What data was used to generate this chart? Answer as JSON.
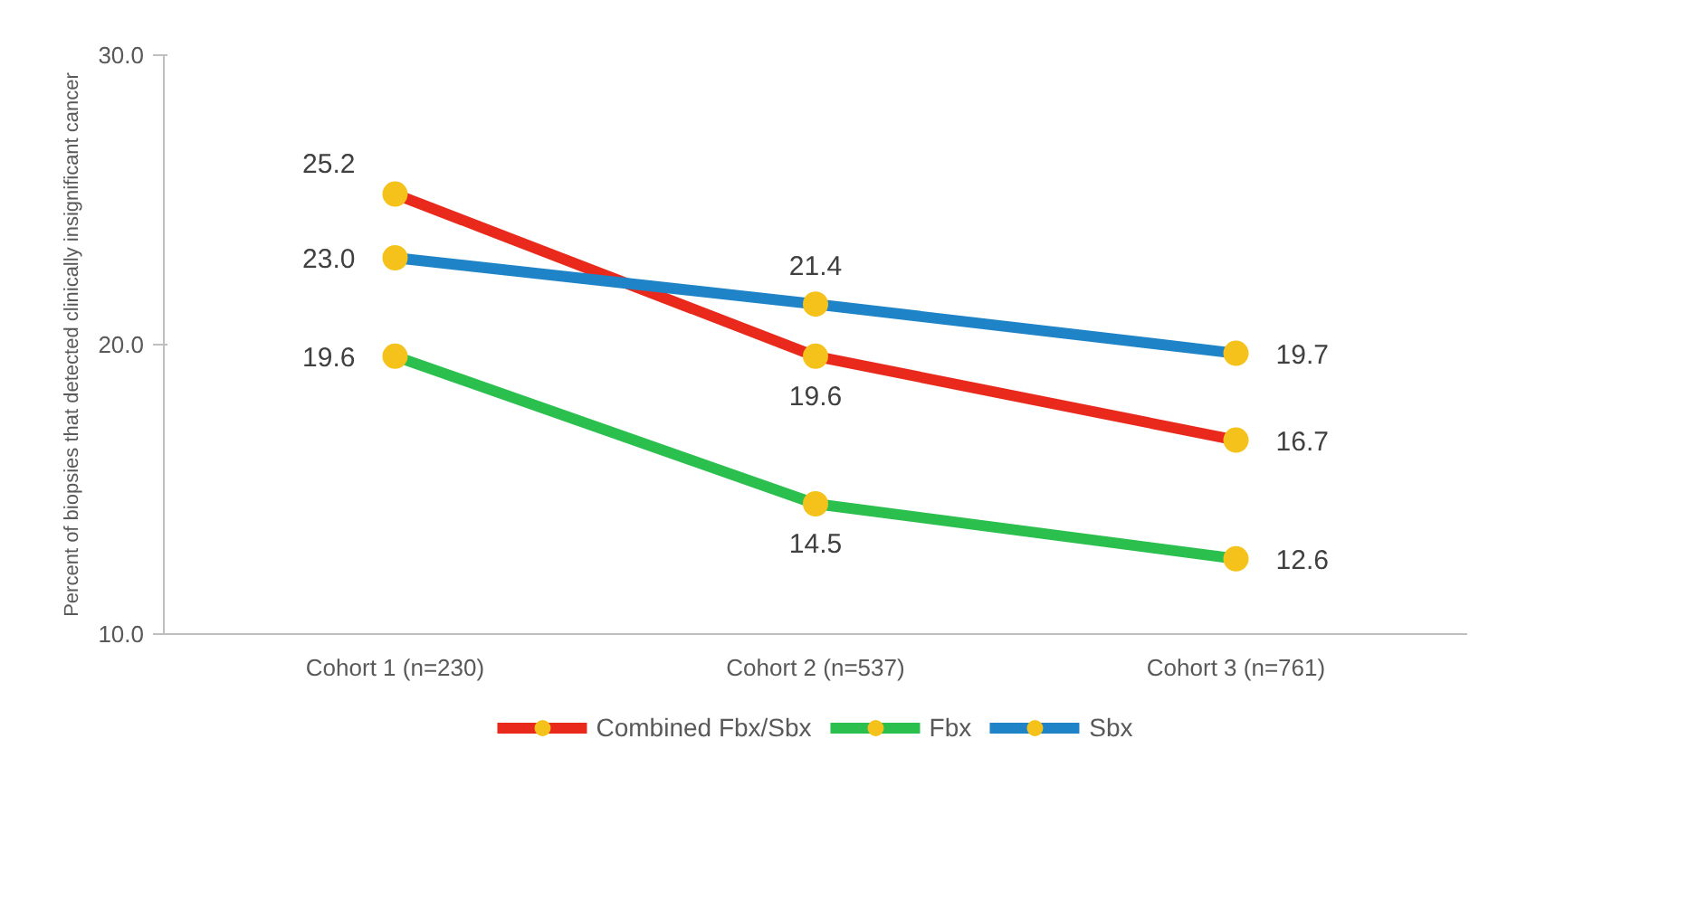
{
  "chart_data": {
    "type": "line",
    "ylabel": "Percent of biopsies that detected clinically insignificant cancer",
    "categories": [
      "Cohort 1 (n=230)",
      "Cohort 2 (n=537)",
      "Cohort 3 (n=761)"
    ],
    "series": [
      {
        "name": "Combined Fbx/Sbx",
        "color": "#e8291c",
        "values": [
          25.2,
          19.6,
          16.7
        ],
        "value_labels": [
          "25.2",
          "19.6",
          "16.7"
        ]
      },
      {
        "name": "Fbx",
        "color": "#2bbf4e",
        "values": [
          19.6,
          14.5,
          12.6
        ],
        "value_labels": [
          "19.6",
          "14.5",
          "12.6"
        ]
      },
      {
        "name": "Sbx",
        "color": "#1f83c8",
        "values": [
          23.0,
          21.4,
          19.7
        ],
        "value_labels": [
          "23.0",
          "21.4",
          "19.7"
        ]
      }
    ],
    "ylim": [
      10,
      30
    ],
    "yticks": [
      {
        "value": 10,
        "label": "10.0"
      },
      {
        "value": 20,
        "label": "20.0"
      },
      {
        "value": 30,
        "label": "30.0"
      }
    ],
    "data_labels": true,
    "legend": "bottom",
    "marker": "circle",
    "line_style": "solid",
    "grid": false
  }
}
